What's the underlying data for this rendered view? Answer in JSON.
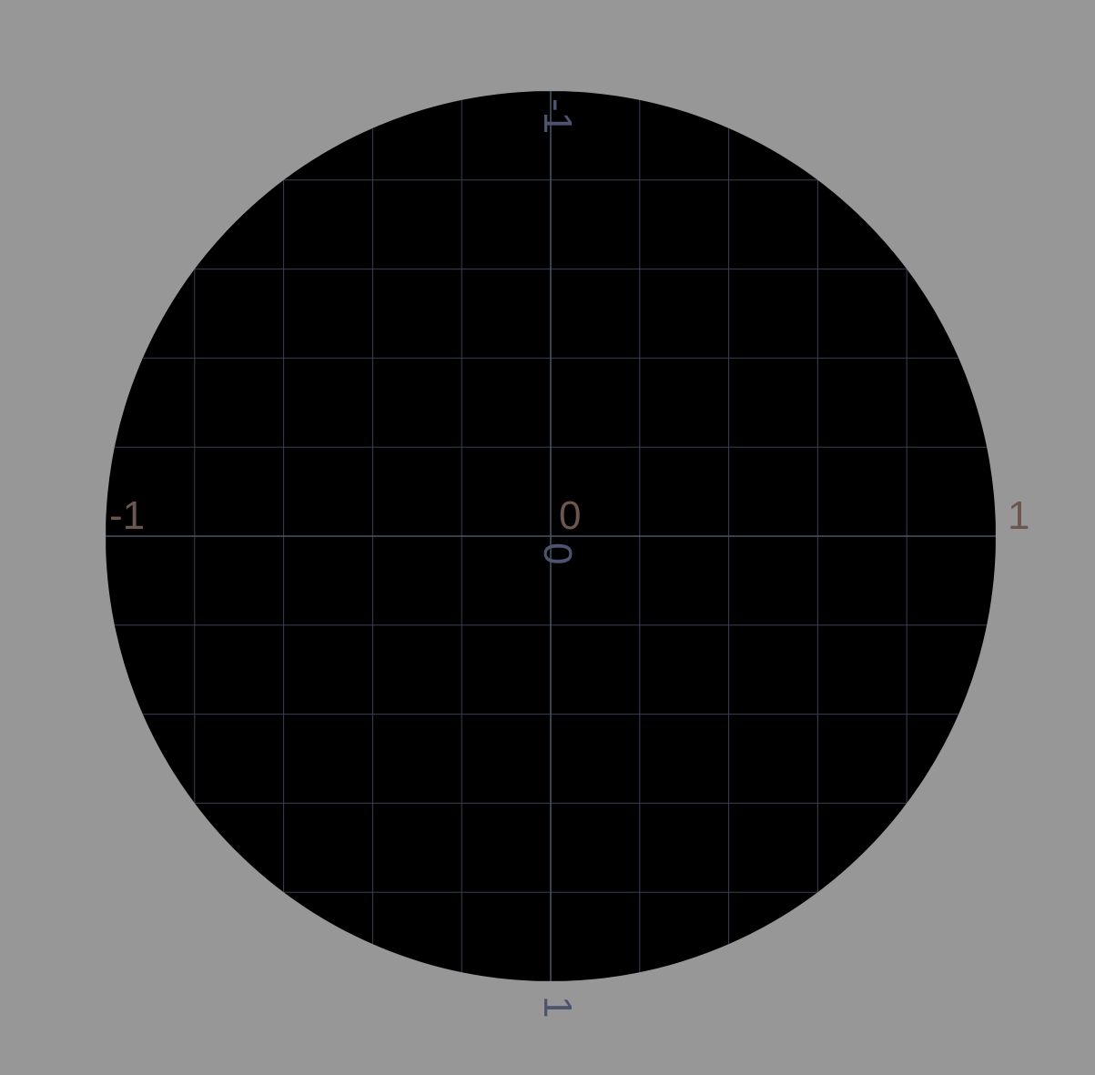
{
  "colors": {
    "background": "#979797",
    "disc": "#000000",
    "grid": "#3a4050",
    "axis": "#4a5468",
    "x_label": "#6e5650",
    "y_label": "#4e5470"
  },
  "x_axis": {
    "min_label": "-1",
    "center_label": "0",
    "max_label": "1"
  },
  "y_axis": {
    "min_label": "-1",
    "center_label": "0",
    "max_label": "1"
  },
  "grid": {
    "divisions_per_half": 5,
    "visible": true
  }
}
